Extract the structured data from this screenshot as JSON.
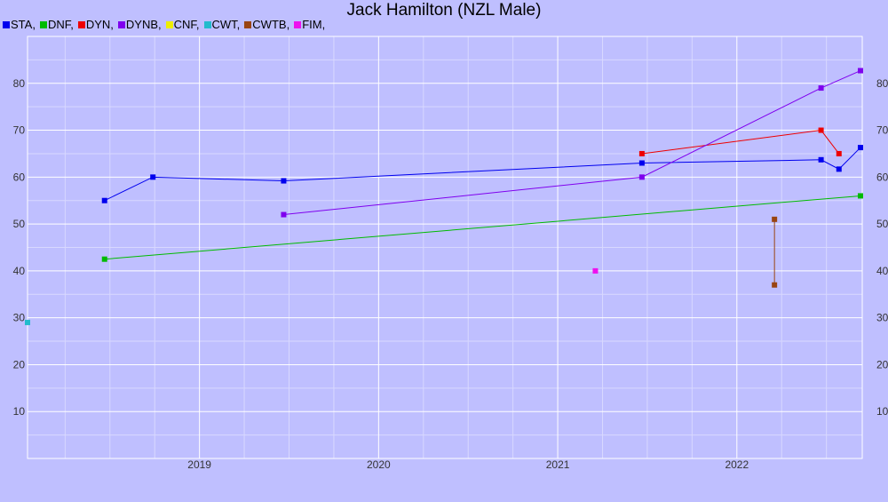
{
  "chart_data": {
    "type": "line",
    "title": "Jack Hamilton (NZL Male)",
    "xlabel": "",
    "ylabel": "",
    "x_ticks": [
      "2019",
      "2020",
      "2021",
      "2022"
    ],
    "x_tick_values": [
      2019.0,
      2020.0,
      2021.0,
      2022.0
    ],
    "y_ticks": [
      10,
      20,
      30,
      40,
      50,
      60,
      70,
      80
    ],
    "xlim": [
      2018.04,
      2022.7
    ],
    "ylim": [
      0,
      90
    ],
    "grid": true,
    "legend_position": "top-left",
    "series": [
      {
        "name": "STA",
        "color": "#0000ee",
        "x": [
          2018.47,
          2018.74,
          2019.47,
          2021.47,
          2022.47,
          2022.57,
          2022.69
        ],
        "y": [
          55,
          60,
          59.2,
          63,
          63.7,
          61.7,
          66.3
        ]
      },
      {
        "name": "DNF",
        "color": "#00bb00",
        "x": [
          2018.47,
          2022.69
        ],
        "y": [
          42.5,
          56
        ]
      },
      {
        "name": "DYN",
        "color": "#ee0000",
        "x": [
          2021.47,
          2022.47,
          2022.57
        ],
        "y": [
          65,
          70,
          65
        ]
      },
      {
        "name": "DYNB",
        "color": "#7f00ee",
        "x": [
          2019.47,
          2021.47,
          2022.47,
          2022.69
        ],
        "y": [
          52,
          60,
          79,
          82.7
        ]
      },
      {
        "name": "CNF",
        "color": "#eeee00",
        "x": [],
        "y": []
      },
      {
        "name": "CWT",
        "color": "#22bbcc",
        "x": [
          2018.04
        ],
        "y": [
          29
        ]
      },
      {
        "name": "CWTB",
        "color": "#994411",
        "x": [
          2022.21,
          2022.21
        ],
        "y": [
          51,
          37
        ]
      },
      {
        "name": "FIM",
        "color": "#ee11ee",
        "x": [
          2021.21
        ],
        "y": [
          40
        ]
      }
    ]
  }
}
